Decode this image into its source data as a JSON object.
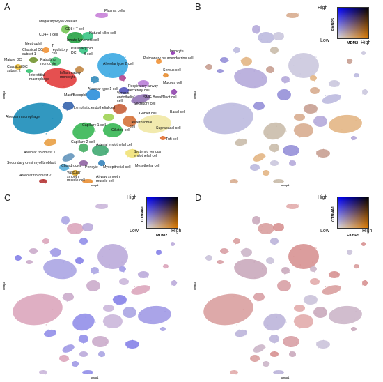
{
  "panels": [
    {
      "letter": "A",
      "xlabel": "umap1",
      "ylabel": "umap2",
      "cells": [
        "Plasma cells",
        "Megakaryocyte/Platelet",
        "CD8+ T cell",
        "CD4+ T cell",
        "Natural killer cell",
        "Innate lymphoid cell",
        "Neutrophil",
        "T regulatory cell",
        "Plasmacytoid DC",
        "Classical DC subset 1",
        "B cell",
        "Mature DC",
        "Classical DC subset 2",
        "Patrolling monocyte",
        "Inflammatory monocyte",
        "Interstitial macrophage",
        "Alveolar type 2 cell",
        "Ionocyte",
        "Pulmonary neuroendocrine cell",
        "Serous cell",
        "Mucous cell",
        "Alveolar type 1 cell",
        "Respiratory airway secretory cell",
        "SMG Basal/Duct cell",
        "Mast/Basophil",
        "Venous endothelial cell",
        "Secretory cell",
        "Lymphatic endothelial cell",
        "Basal cell",
        "Goblet cell",
        "Deuterosomal cell",
        "Suprabasal cell",
        "Alveolar macrophage",
        "Capillary 1 cell",
        "Ciliated cell",
        "Tuft cell",
        "Capillary 2 cell",
        "Arterial endothelial cell",
        "Systemic venous endothelial cell",
        "Alveolar fibroblast 1",
        "Mesothelial cell",
        "Secondary crest myofibroblast",
        "Chondrocyte",
        "Pericyte",
        "Myoepithelial cell",
        "Alveolar fibroblast 2",
        "Vascular smooth muscle cell",
        "Airway smooth muscle cell"
      ]
    },
    {
      "letter": "B",
      "xlabel": "umap1",
      "ylabel": "umap2",
      "legend": {
        "high": "High",
        "low": "Low",
        "feature_x": "MDM2",
        "feature_y": "FKBP5",
        "color_low": "#d9d9d9",
        "color_x": "#ff8c00",
        "color_y": "#0000ff",
        "color_both": "#ff33ff"
      }
    },
    {
      "letter": "C",
      "xlabel": "umap1",
      "ylabel": "umap2",
      "legend": {
        "high": "High",
        "low": "Low",
        "feature_x": "MDM2",
        "feature_y": "CTNNA1",
        "color_low": "#d9d9d9",
        "color_x": "#ff8c00",
        "color_y": "#0000ff",
        "color_both": "#ff33ff"
      }
    },
    {
      "letter": "D",
      "xlabel": "umap1",
      "ylabel": "umap2",
      "legend": {
        "high": "High",
        "low": "Low",
        "feature_x": "FKBP5",
        "feature_y": "CTNNA1",
        "color_low": "#d9d9d9",
        "color_x": "#ff8c00",
        "color_y": "#0000ff",
        "color_both": "#ff33ff"
      }
    }
  ]
}
